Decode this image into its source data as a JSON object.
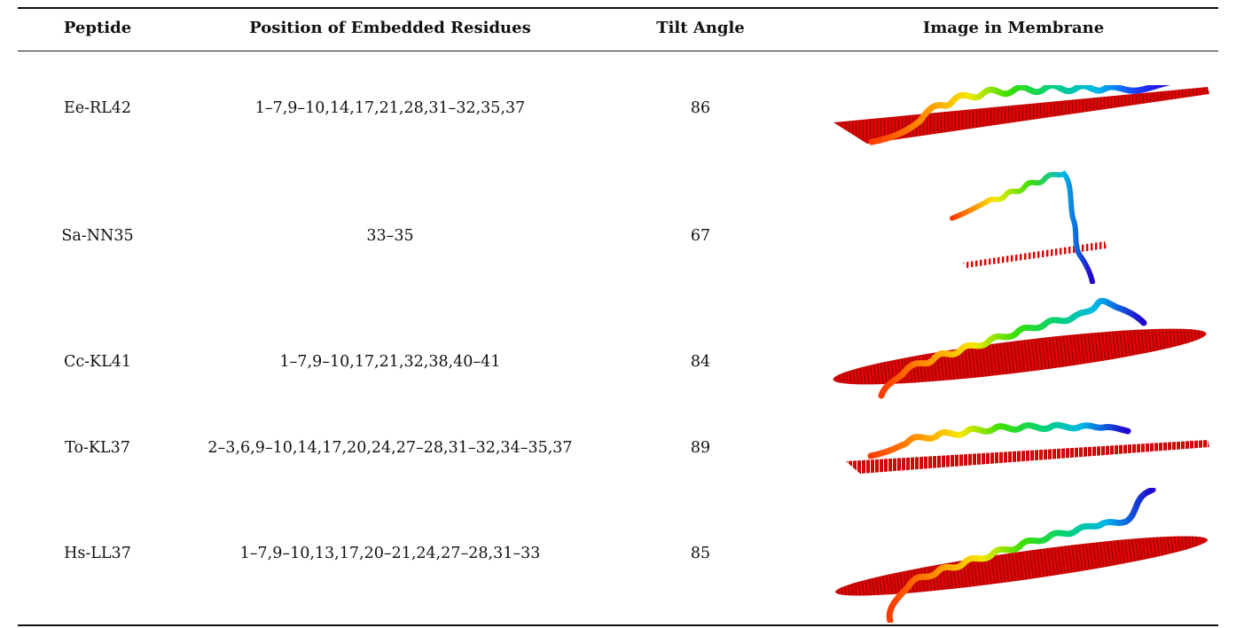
{
  "table": {
    "headers": {
      "peptide": "Peptide",
      "position": "Position of Embedded Residues",
      "tilt": "Tilt Angle",
      "image": "Image in Membrane"
    },
    "rows": [
      {
        "peptide": "Ee-RL42",
        "position": "1–7,9–10,14,17,21,28,31–32,35,37",
        "tilt": "86"
      },
      {
        "peptide": "Sa-NN35",
        "position": "33–35",
        "tilt": "67"
      },
      {
        "peptide": "Cc-KL41",
        "position": "1–7,9–10,17,21,32,38,40–41",
        "tilt": "84"
      },
      {
        "peptide": "To-KL37",
        "position": "2–3,6,9–10,14,17,20,24,27–28,31–32,34–35,37",
        "tilt": "89"
      },
      {
        "peptide": "Hs-LL37",
        "position": "1–7,9–10,13,17,20–21,24,27–28,31–33",
        "tilt": "85"
      }
    ]
  },
  "colors": {
    "membrane": "#e00000",
    "helix_gradient": [
      "#ff3a00",
      "#ff9d00",
      "#f5e800",
      "#3ee000",
      "#00d080",
      "#00b6e8",
      "#1a3cff",
      "#2200cc"
    ]
  }
}
